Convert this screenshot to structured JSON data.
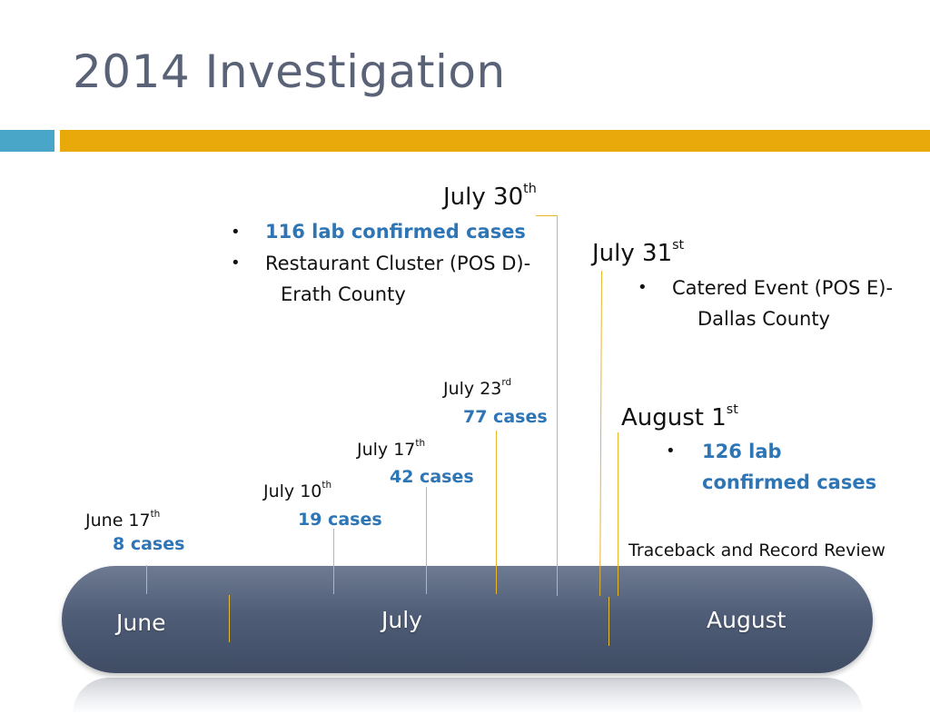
{
  "title": "2014 Investigation",
  "timeline": {
    "months": [
      "June",
      "July",
      "August"
    ]
  },
  "events": {
    "june17": {
      "date": "June 17",
      "suffix": "th",
      "cases": "8 cases"
    },
    "july10": {
      "date": "July 10",
      "suffix": "th",
      "cases": "19 cases"
    },
    "july17": {
      "date": "July 17",
      "suffix": "th",
      "cases": "42 cases"
    },
    "july23": {
      "date": "July 23",
      "suffix": "rd",
      "cases": "77 cases"
    },
    "july30": {
      "date": "July 30",
      "suffix": "th",
      "bullets": [
        "116 lab confirmed cases",
        "Restaurant Cluster (POS D)-",
        "Erath County"
      ]
    },
    "july31": {
      "date": "July 31",
      "suffix": "st",
      "bullets": [
        "Catered Event (POS E)-",
        "Dallas County"
      ]
    },
    "august1": {
      "date": "August 1",
      "suffix": "st",
      "bullets": [
        "126 lab",
        "confirmed cases"
      ]
    }
  },
  "traceback_note": "Traceback and Record Review",
  "colors": {
    "title": "#5a6278",
    "accent_gold": "#eaa90a",
    "accent_blue": "#4aa6c8",
    "case_blue": "#2e75b6",
    "pill": "#4f5d77"
  }
}
